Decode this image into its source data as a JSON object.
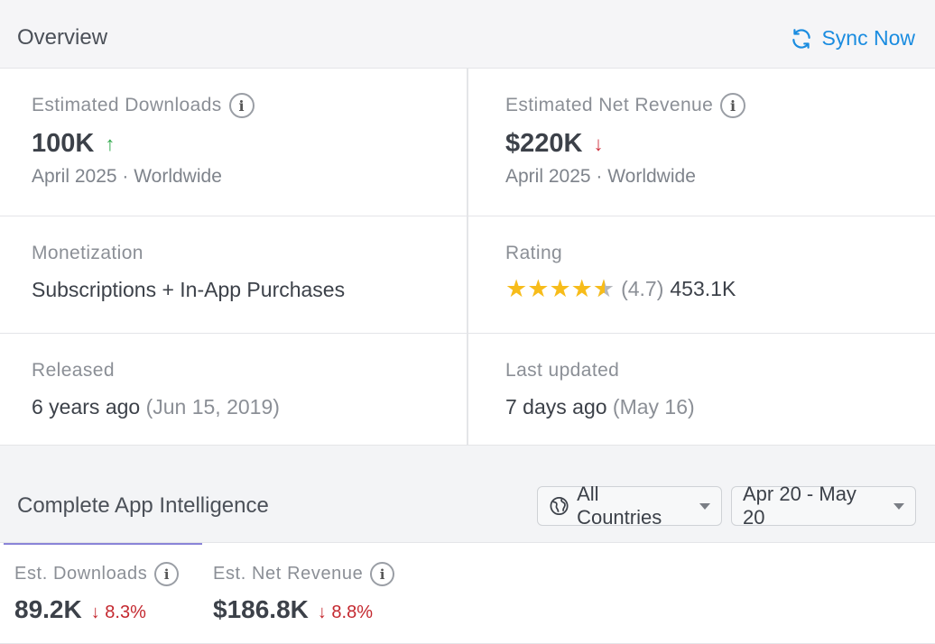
{
  "overview": {
    "title": "Overview",
    "sync_label": "Sync Now"
  },
  "cards": {
    "downloads": {
      "label": "Estimated Downloads",
      "value": "100K",
      "trend": "↑",
      "sub": "April 2025 · Worldwide"
    },
    "revenue": {
      "label": "Estimated Net Revenue",
      "value": "$220K",
      "trend": "↓",
      "sub": "April 2025 · Worldwide"
    },
    "monetization": {
      "label": "Monetization",
      "value": "Subscriptions + In-App Purchases"
    },
    "rating": {
      "label": "Rating",
      "stars": 4.7,
      "score": "(4.7)",
      "count": "453.1K"
    },
    "released": {
      "label": "Released",
      "value": "6 years ago",
      "date": "(Jun 15, 2019)"
    },
    "updated": {
      "label": "Last updated",
      "value": "7 days ago",
      "date": "(May 16)"
    }
  },
  "intelligence": {
    "title": "Complete App Intelligence",
    "country_filter": "All Countries",
    "date_filter": "Apr 20 - May 20",
    "metrics": [
      {
        "label": "Est. Downloads",
        "value": "89.2K",
        "delta": "↓ 8.3%"
      },
      {
        "label": "Est. Net Revenue",
        "value": "$186.8K",
        "delta": "↓ 8.8%"
      }
    ]
  },
  "colors": {
    "accent": "#1a8ce0",
    "up": "#2ea84a",
    "down": "#d0323f",
    "star": "#f7bc1a"
  }
}
